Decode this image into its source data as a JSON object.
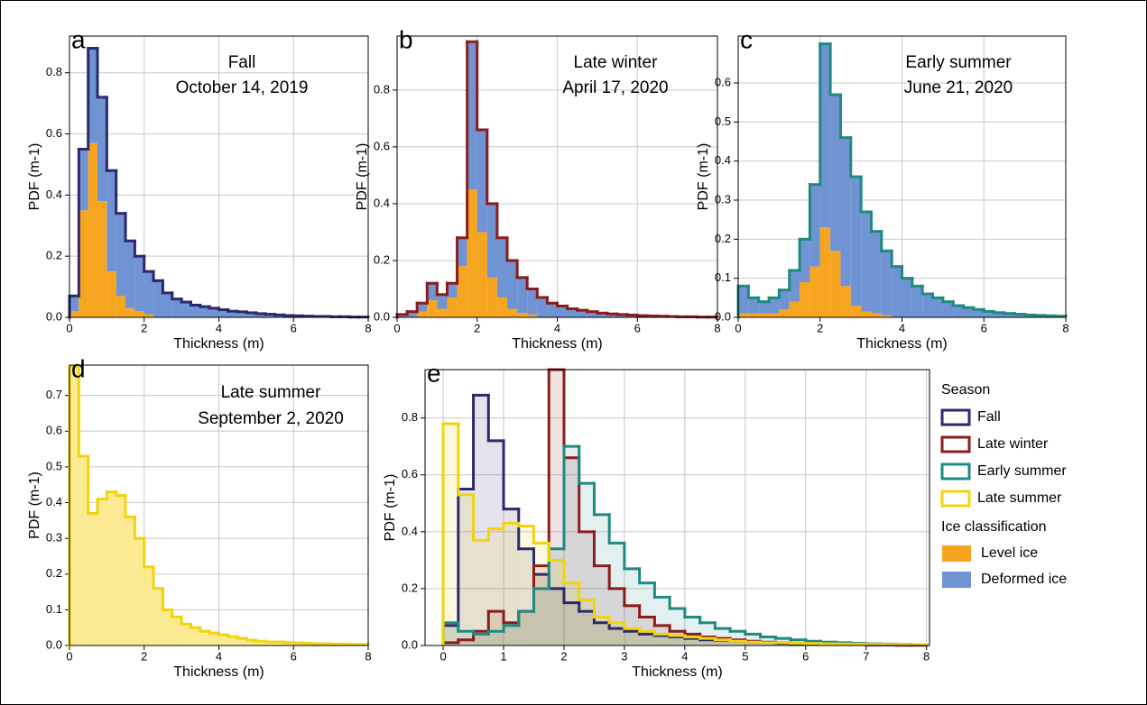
{
  "chart_data": [
    {
      "type": "histogram",
      "label": "a",
      "title": "Fall",
      "subtitle": "October 14, 2019",
      "xlabel": "Thickness (m)",
      "ylabel": "PDF (m-1)",
      "bins": [
        0,
        0.25,
        0.5,
        0.75,
        1,
        1.25,
        1.5,
        1.75,
        2,
        2.25,
        2.5,
        2.75,
        3,
        3.25,
        3.5,
        3.75,
        4,
        4.25,
        4.5,
        4.75,
        5,
        5.25,
        5.5,
        5.75,
        6,
        6.25,
        6.5,
        6.75,
        7,
        7.25,
        7.5,
        7.75,
        8
      ],
      "xlim": [
        0,
        8
      ],
      "ylim": [
        0,
        0.92
      ],
      "xticks": [
        0,
        2,
        4,
        6,
        8
      ],
      "yticks": [
        {
          "value": 0,
          "label": "0.0"
        },
        0.2,
        0.4,
        0.6,
        0.8
      ],
      "grid": true,
      "stacked": true,
      "outline": "#2b2a6b",
      "series": [
        {
          "color": "#f7a51f",
          "values": [
            0.02,
            0.35,
            0.57,
            0.38,
            0.15,
            0.07,
            0.03,
            0.02,
            0.01,
            0,
            0,
            0,
            0,
            0,
            0,
            0,
            0,
            0,
            0,
            0,
            0,
            0,
            0,
            0,
            0,
            0,
            0,
            0,
            0,
            0,
            0,
            0
          ]
        },
        {
          "color": "#6f93d3",
          "values": [
            0.05,
            0.2,
            0.31,
            0.34,
            0.33,
            0.27,
            0.22,
            0.18,
            0.14,
            0.12,
            0.08,
            0.06,
            0.05,
            0.04,
            0.035,
            0.03,
            0.025,
            0.02,
            0.018,
            0.015,
            0.012,
            0.01,
            0.008,
            0.006,
            0.005,
            0.004,
            0.003,
            0.003,
            0.002,
            0.002,
            0.001,
            0.001
          ]
        }
      ]
    },
    {
      "type": "histogram",
      "label": "b",
      "title": "Late winter",
      "subtitle": "April 17, 2020",
      "xlabel": "Thickness (m)",
      "ylabel": "PDF (m-1)",
      "bins": [
        0,
        0.25,
        0.5,
        0.75,
        1,
        1.25,
        1.5,
        1.75,
        2,
        2.25,
        2.5,
        2.75,
        3,
        3.25,
        3.5,
        3.75,
        4,
        4.25,
        4.5,
        4.75,
        5,
        5.25,
        5.5,
        5.75,
        6,
        6.25,
        6.5,
        6.75,
        7,
        7.25,
        7.5,
        7.75,
        8
      ],
      "xlim": [
        0,
        8
      ],
      "ylim": [
        0,
        0.99
      ],
      "xticks": [
        0,
        2,
        4,
        6,
        8
      ],
      "yticks": [
        {
          "value": 0,
          "label": "0.0"
        },
        0.2,
        0.4,
        0.6,
        0.8
      ],
      "grid": true,
      "stacked": true,
      "outline": "#8b1c1c",
      "series": [
        {
          "color": "#f7a51f",
          "values": [
            0,
            0,
            0.02,
            0.06,
            0.03,
            0.07,
            0.18,
            0.45,
            0.3,
            0.14,
            0.07,
            0.03,
            0.015,
            0.01,
            0,
            0,
            0,
            0,
            0,
            0,
            0,
            0,
            0,
            0,
            0,
            0,
            0,
            0,
            0,
            0,
            0,
            0
          ]
        },
        {
          "color": "#6f93d3",
          "values": [
            0.01,
            0.02,
            0.03,
            0.06,
            0.05,
            0.05,
            0.1,
            0.52,
            0.36,
            0.26,
            0.21,
            0.17,
            0.125,
            0.09,
            0.07,
            0.05,
            0.04,
            0.03,
            0.025,
            0.02,
            0.015,
            0.012,
            0.01,
            0.008,
            0.006,
            0.005,
            0.004,
            0.003,
            0.002,
            0.002,
            0.001,
            0.001
          ]
        }
      ]
    },
    {
      "type": "histogram",
      "label": "c",
      "title": "Early summer",
      "subtitle": "June 21, 2020",
      "xlabel": "Thickness (m)",
      "ylabel": "PDF (m-1)",
      "bins": [
        0,
        0.25,
        0.5,
        0.75,
        1,
        1.25,
        1.5,
        1.75,
        2,
        2.25,
        2.5,
        2.75,
        3,
        3.25,
        3.5,
        3.75,
        4,
        4.25,
        4.5,
        4.75,
        5,
        5.25,
        5.5,
        5.75,
        6,
        6.25,
        6.5,
        6.75,
        7,
        7.25,
        7.5,
        7.75,
        8
      ],
      "xlim": [
        0,
        8
      ],
      "ylim": [
        0,
        0.72
      ],
      "xticks": [
        0,
        2,
        4,
        6,
        8
      ],
      "yticks": [
        {
          "value": 0,
          "label": "0.0"
        },
        0.1,
        0.2,
        0.3,
        0.4,
        0.5,
        0.6
      ],
      "grid": true,
      "stacked": true,
      "outline": "#1f8a80",
      "series": [
        {
          "color": "#f7a51f",
          "values": [
            0.01,
            0.01,
            0.01,
            0.01,
            0.02,
            0.04,
            0.09,
            0.13,
            0.23,
            0.17,
            0.08,
            0.03,
            0.015,
            0.01,
            0.005,
            0,
            0,
            0,
            0,
            0,
            0,
            0,
            0,
            0,
            0,
            0,
            0,
            0,
            0,
            0,
            0,
            0
          ]
        },
        {
          "color": "#6f93d3",
          "values": [
            0.07,
            0.04,
            0.03,
            0.04,
            0.05,
            0.08,
            0.11,
            0.21,
            0.47,
            0.4,
            0.38,
            0.33,
            0.255,
            0.21,
            0.165,
            0.13,
            0.1,
            0.08,
            0.06,
            0.05,
            0.04,
            0.03,
            0.025,
            0.02,
            0.015,
            0.012,
            0.01,
            0.008,
            0.006,
            0.005,
            0.004,
            0.003
          ]
        }
      ]
    },
    {
      "type": "histogram",
      "label": "d",
      "title": "Late summer",
      "subtitle": "September 2, 2020",
      "xlabel": "Thickness (m)",
      "ylabel": "PDF (m-1)",
      "bins": [
        0,
        0.25,
        0.5,
        0.75,
        1,
        1.25,
        1.5,
        1.75,
        2,
        2.25,
        2.5,
        2.75,
        3,
        3.25,
        3.5,
        3.75,
        4,
        4.25,
        4.5,
        4.75,
        5,
        5.25,
        5.5,
        5.75,
        6,
        6.25,
        6.5,
        6.75,
        7,
        7.25,
        7.5,
        7.75,
        8
      ],
      "xlim": [
        0,
        8
      ],
      "ylim": [
        0,
        0.785
      ],
      "xticks": [
        0,
        2,
        4,
        6,
        8
      ],
      "yticks": [
        {
          "value": 0,
          "label": "0.0"
        },
        0.1,
        0.2,
        0.3,
        0.4,
        0.5,
        0.6,
        0.7
      ],
      "grid": true,
      "color": "#f2d40c",
      "fill": "#fbea92",
      "values": [
        0.78,
        0.53,
        0.37,
        0.41,
        0.43,
        0.42,
        0.36,
        0.3,
        0.22,
        0.16,
        0.1,
        0.08,
        0.06,
        0.05,
        0.04,
        0.035,
        0.03,
        0.025,
        0.02,
        0.015,
        0.012,
        0.01,
        0.01,
        0.008,
        0.007,
        0.006,
        0.005,
        0.005,
        0.004,
        0.004,
        0.003,
        0.003
      ]
    },
    {
      "type": "histogram",
      "label": "e",
      "xlabel": "Thickness (m)",
      "ylabel": "PDF (m-1)",
      "bins": [
        0,
        0.25,
        0.5,
        0.75,
        1,
        1.25,
        1.5,
        1.75,
        2,
        2.25,
        2.5,
        2.75,
        3,
        3.25,
        3.5,
        3.75,
        4,
        4.25,
        4.5,
        4.75,
        5,
        5.25,
        5.5,
        5.75,
        6,
        6.25,
        6.5,
        6.75,
        7,
        7.25,
        7.5,
        7.75,
        8
      ],
      "xlim": [
        -0.3,
        8.05
      ],
      "ylim": [
        0,
        0.97
      ],
      "xticks": [
        0,
        1,
        2,
        3,
        4,
        5,
        6,
        7,
        8
      ],
      "yticks": [
        {
          "value": 0,
          "label": "0.0"
        },
        0.2,
        0.4,
        0.6,
        0.8
      ],
      "grid": true,
      "fill_opacity": 0.13,
      "legend_title": "Season",
      "legend": "outside right",
      "series": [
        {
          "name": "Fall",
          "color": "#2b2a6b",
          "values": [
            0.07,
            0.55,
            0.88,
            0.72,
            0.48,
            0.34,
            0.25,
            0.2,
            0.15,
            0.12,
            0.08,
            0.06,
            0.05,
            0.04,
            0.035,
            0.03,
            0.025,
            0.02,
            0.018,
            0.015,
            0.012,
            0.01,
            0.008,
            0.006,
            0.005,
            0.004,
            0.003,
            0.003,
            0.002,
            0.002,
            0.001,
            0.001
          ]
        },
        {
          "name": "Late winter",
          "color": "#8b1c1c",
          "values": [
            0.01,
            0.02,
            0.05,
            0.12,
            0.08,
            0.12,
            0.28,
            0.97,
            0.66,
            0.4,
            0.28,
            0.2,
            0.14,
            0.1,
            0.07,
            0.05,
            0.04,
            0.03,
            0.025,
            0.02,
            0.015,
            0.012,
            0.01,
            0.008,
            0.006,
            0.005,
            0.004,
            0.003,
            0.002,
            0.002,
            0.001,
            0.001
          ]
        },
        {
          "name": "Early summer",
          "color": "#1f8a80",
          "values": [
            0.08,
            0.05,
            0.04,
            0.05,
            0.07,
            0.12,
            0.2,
            0.34,
            0.7,
            0.57,
            0.46,
            0.36,
            0.27,
            0.22,
            0.17,
            0.13,
            0.1,
            0.08,
            0.06,
            0.05,
            0.04,
            0.03,
            0.025,
            0.02,
            0.015,
            0.012,
            0.01,
            0.008,
            0.006,
            0.005,
            0.004,
            0.003
          ]
        },
        {
          "name": "Late summer",
          "color": "#f2d40c",
          "values": [
            0.78,
            0.53,
            0.37,
            0.41,
            0.43,
            0.42,
            0.36,
            0.3,
            0.22,
            0.16,
            0.1,
            0.08,
            0.06,
            0.05,
            0.04,
            0.035,
            0.03,
            0.025,
            0.02,
            0.015,
            0.012,
            0.01,
            0.01,
            0.008,
            0.007,
            0.006,
            0.005,
            0.005,
            0.004,
            0.004,
            0.003,
            0.003
          ]
        }
      ],
      "classification": {
        "title": "Ice classification",
        "items": [
          {
            "name": "Level ice",
            "color": "#f7a51f"
          },
          {
            "name": "Deformed ice",
            "color": "#6f93d3"
          }
        ]
      }
    }
  ]
}
